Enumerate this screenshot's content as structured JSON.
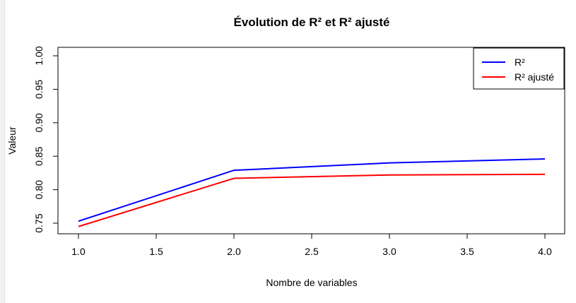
{
  "chart_data": {
    "type": "line",
    "title": "Évolution de R² et R² ajusté",
    "xlabel": "Nombre de variables",
    "ylabel": "Valeur",
    "x": [
      1,
      2,
      3,
      4
    ],
    "xlim": [
      1,
      4
    ],
    "ylim": [
      0.75,
      1.0
    ],
    "x_ticks": [
      "1.0",
      "1.5",
      "2.0",
      "2.5",
      "3.0",
      "3.5",
      "4.0"
    ],
    "y_ticks": [
      "0.75",
      "0.80",
      "0.85",
      "0.90",
      "0.95",
      "1.00"
    ],
    "grid": false,
    "legend_position": "top-right",
    "series": [
      {
        "name": "R²",
        "color": "#0000ff",
        "values": [
          0.753,
          0.829,
          0.84,
          0.846
        ]
      },
      {
        "name": "R² ajusté",
        "color": "#ff0000",
        "values": [
          0.745,
          0.817,
          0.822,
          0.823
        ]
      }
    ]
  }
}
